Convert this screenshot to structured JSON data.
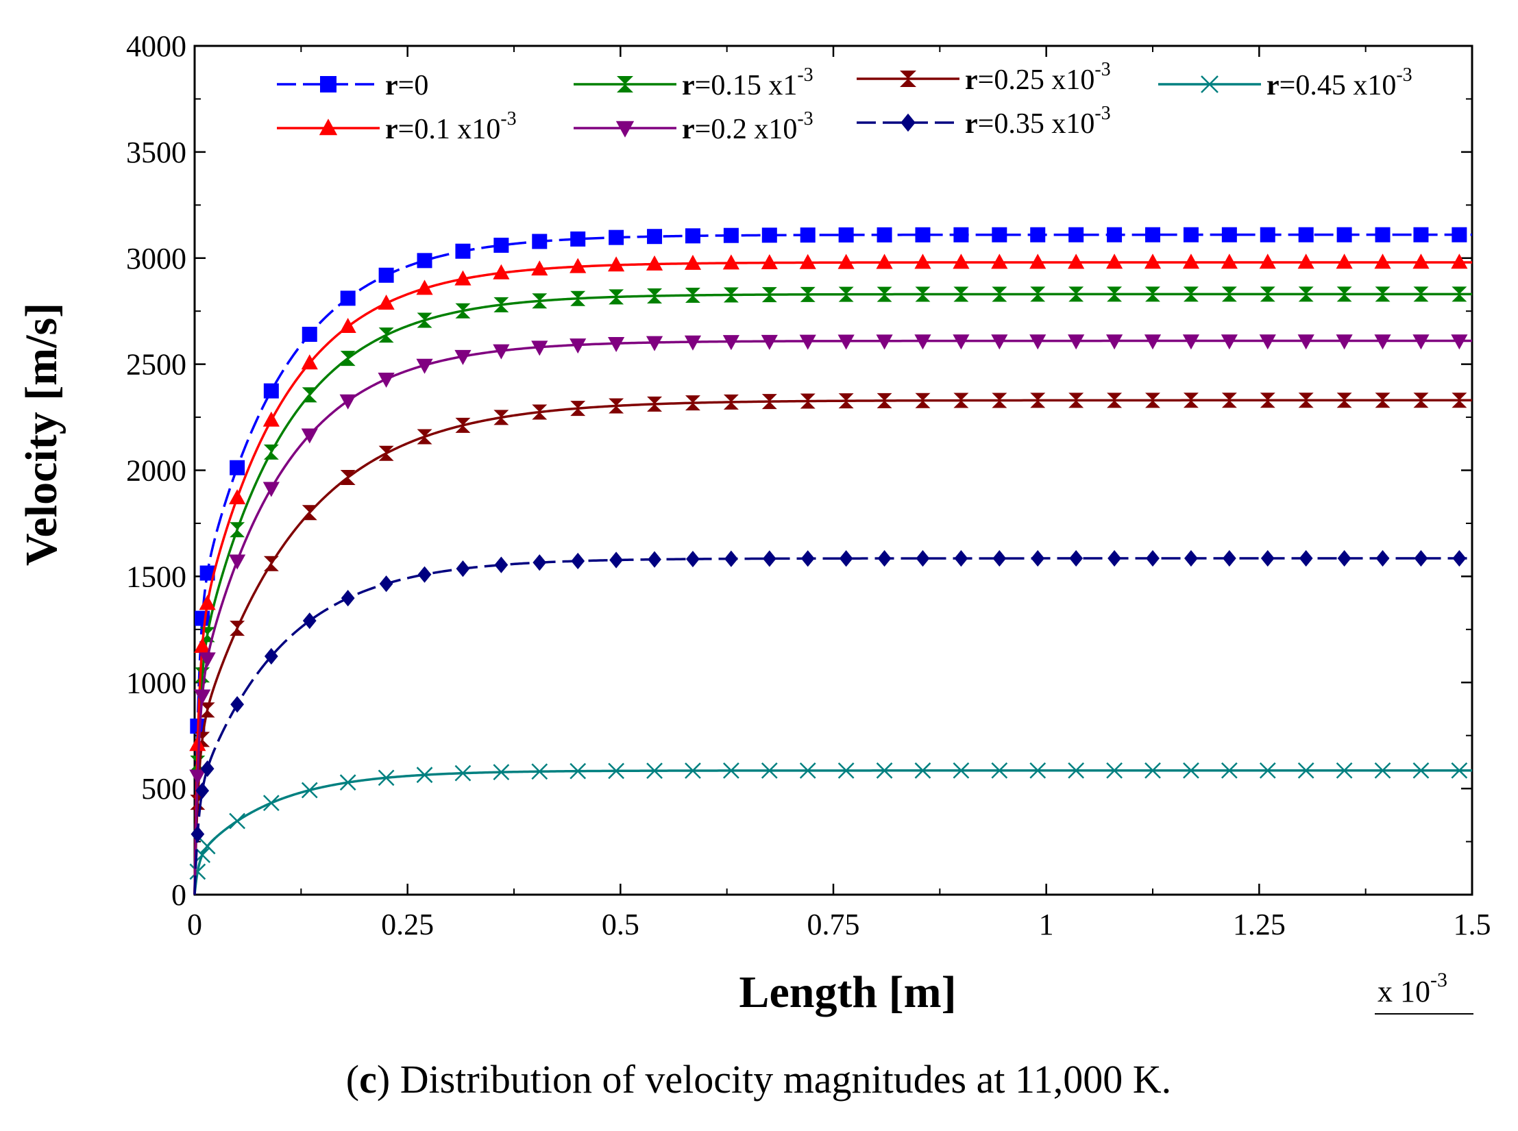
{
  "chart_data": {
    "type": "line",
    "xlabel": "Length [m]",
    "ylabel": "Velocity [m/s]",
    "x_multiplier": {
      "base": "x 10",
      "exp": "-3"
    },
    "xlim": [
      0,
      1.5
    ],
    "ylim": [
      0,
      4000
    ],
    "x_ticks": [
      {
        "v": 0,
        "label": "0"
      },
      {
        "v": 0.25,
        "label": "0.25"
      },
      {
        "v": 0.5,
        "label": "0.5"
      },
      {
        "v": 0.75,
        "label": "0.75"
      },
      {
        "v": 1,
        "label": "1"
      },
      {
        "v": 1.25,
        "label": "1.25"
      },
      {
        "v": 1.5,
        "label": "1.5"
      }
    ],
    "y_ticks": [
      {
        "v": 0,
        "label": "0"
      },
      {
        "v": 500,
        "label": "500"
      },
      {
        "v": 1000,
        "label": "1000"
      },
      {
        "v": 1500,
        "label": "1500"
      },
      {
        "v": 2000,
        "label": "2000"
      },
      {
        "v": 2500,
        "label": "2500"
      },
      {
        "v": 3000,
        "label": "3000"
      },
      {
        "v": 3500,
        "label": "3500"
      },
      {
        "v": 4000,
        "label": "4000"
      }
    ],
    "series": [
      {
        "name": "r=0",
        "label_bold": "r",
        "label_rest": "=0",
        "label_sup": "",
        "color": "#0000ff",
        "marker": "square",
        "dash": true,
        "v_inf": 3110,
        "tau": 0.1,
        "v0": 1300
      },
      {
        "name": "r=0.15 x1-3",
        "label_bold": "r",
        "label_rest": "=0.15 x1",
        "label_sup": "-3",
        "color": "#008000",
        "marker": "bowtie",
        "dash": false,
        "v_inf": 2830,
        "tau": 0.1,
        "v0": 1000
      },
      {
        "name": "r=0.25 x10-3",
        "label_bold": "r",
        "label_rest": "=0.25 x10",
        "label_sup": "-3",
        "color": "#800000",
        "marker": "hourglass",
        "dash": false,
        "v_inf": 2330,
        "tau": 0.12,
        "v0": 700
      },
      {
        "name": "r=0.45 x10-3",
        "label_bold": "r",
        "label_rest": "=0.45 x10",
        "label_sup": "-3",
        "color": "#008080",
        "marker": "x",
        "dash": false,
        "v_inf": 585,
        "tau": 0.09,
        "v0": 170
      },
      {
        "name": "r=0.1 x10-3",
        "label_bold": "r",
        "label_rest": "=0.1 x10",
        "label_sup": "-3",
        "color": "#ff0000",
        "marker": "triangle-up",
        "dash": false,
        "v_inf": 2980,
        "tau": 0.1,
        "v0": 1150
      },
      {
        "name": "r=0.2 x10-3",
        "label_bold": "r",
        "label_rest": "=0.2 x10",
        "label_sup": "-3",
        "color": "#800080",
        "marker": "triangle-down",
        "dash": false,
        "v_inf": 2610,
        "tau": 0.1,
        "v0": 900
      },
      {
        "name": "r=0.35 x10-3",
        "label_bold": "r",
        "label_rest": "=0.35 x10",
        "label_sup": "-3",
        "color": "#000080",
        "marker": "diamond",
        "dash": true,
        "v_inf": 1585,
        "tau": 0.1,
        "v0": 450
      }
    ]
  },
  "caption": {
    "letter": "c",
    "open": "(",
    "close": ")",
    "text": " Distribution of velocity magnitudes at 11,000 K."
  }
}
